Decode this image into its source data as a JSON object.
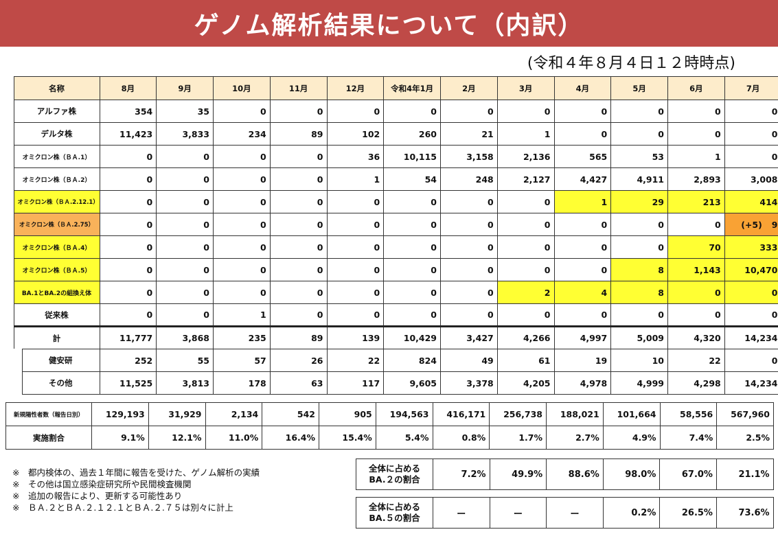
{
  "title": "ゲノム解析結果について（内訳）",
  "as_of": "(令和４年８月４日１２時時点)",
  "header": [
    "名称",
    "8月",
    "9月",
    "10月",
    "11月",
    "12月",
    "令和4年1月",
    "2月",
    "3月",
    "4月",
    "5月",
    "6月",
    "7月"
  ],
  "rows": [
    {
      "label": "アルファ株",
      "values": [
        "354",
        "35",
        "0",
        "0",
        "0",
        "0",
        "0",
        "0",
        "0",
        "0",
        "0",
        "0"
      ]
    },
    {
      "label": "デルタ株",
      "values": [
        "11,423",
        "3,833",
        "234",
        "89",
        "102",
        "260",
        "21",
        "1",
        "0",
        "0",
        "0",
        "0"
      ]
    },
    {
      "label": "オミクロン株（ＢＡ.1）",
      "values": [
        "0",
        "0",
        "0",
        "0",
        "36",
        "10,115",
        "3,158",
        "2,136",
        "565",
        "53",
        "1",
        "0"
      ]
    },
    {
      "label": "オミクロン株（ＢＡ.2）",
      "values": [
        "0",
        "0",
        "0",
        "0",
        "1",
        "54",
        "248",
        "2,127",
        "4,427",
        "4,911",
        "2,893",
        "3,008"
      ]
    },
    {
      "label": "オミクロン株（ＢＡ.2.12.1）",
      "values": [
        "0",
        "0",
        "0",
        "0",
        "0",
        "0",
        "0",
        "0",
        "1",
        "29",
        "213",
        "414"
      ]
    },
    {
      "label": "オミクロン株（ＢＡ.2.75）",
      "values": [
        "0",
        "0",
        "0",
        "0",
        "0",
        "0",
        "0",
        "0",
        "0",
        "0",
        "0",
        "9"
      ],
      "note_plus": "(+5)"
    },
    {
      "label": "オミクロン株（ＢＡ.4）",
      "values": [
        "0",
        "0",
        "0",
        "0",
        "0",
        "0",
        "0",
        "0",
        "0",
        "0",
        "70",
        "333"
      ]
    },
    {
      "label": "オミクロン株（ＢＡ.5）",
      "values": [
        "0",
        "0",
        "0",
        "0",
        "0",
        "0",
        "0",
        "0",
        "0",
        "8",
        "1,143",
        "10,470"
      ]
    },
    {
      "label": "BA.1とBA.2の組換え体",
      "values": [
        "0",
        "0",
        "0",
        "0",
        "0",
        "0",
        "0",
        "2",
        "4",
        "8",
        "0",
        "0"
      ]
    },
    {
      "label": "従来株",
      "values": [
        "0",
        "0",
        "1",
        "0",
        "0",
        "0",
        "0",
        "0",
        "0",
        "0",
        "0",
        "0"
      ]
    }
  ],
  "total": {
    "label": "計",
    "values": [
      "11,777",
      "3,868",
      "235",
      "89",
      "139",
      "10,429",
      "3,427",
      "4,266",
      "4,997",
      "5,009",
      "4,320",
      "14,234"
    ]
  },
  "kenanken": {
    "label": "健安研",
    "values": [
      "252",
      "55",
      "57",
      "26",
      "22",
      "824",
      "49",
      "61",
      "19",
      "10",
      "22",
      "0"
    ]
  },
  "other": {
    "label": "その他",
    "values": [
      "11,525",
      "3,813",
      "178",
      "63",
      "117",
      "9,605",
      "3,378",
      "4,205",
      "4,978",
      "4,999",
      "4,298",
      "14,234"
    ]
  },
  "new_cases": {
    "label": "新規陽性者数（報告日別）",
    "values": [
      "129,193",
      "31,929",
      "2,134",
      "542",
      "905",
      "194,563",
      "416,171",
      "256,738",
      "188,021",
      "101,664",
      "58,556",
      "567,960"
    ]
  },
  "rate": {
    "label": "実施割合",
    "values": [
      "9.1%",
      "12.1%",
      "11.0%",
      "16.4%",
      "15.4%",
      "5.4%",
      "0.8%",
      "1.7%",
      "2.7%",
      "4.9%",
      "7.4%",
      "2.5%"
    ]
  },
  "notes": [
    "※　都内検体の、過去１年間に報告を受けた、ゲノム解析の実績",
    "※　その他は国立感染症研究所や民間検査機関",
    "※　追加の報告により、更新する可能性あり",
    "※　ＢＡ.２とＢＡ.２.１２.１とＢＡ.２.７５は別々に計上"
  ],
  "ba2_share": {
    "label": "全体に占める BA.２の割合",
    "values": [
      "7.2%",
      "49.9%",
      "88.6%",
      "98.0%",
      "67.0%",
      "21.1%"
    ]
  },
  "ba5_share": {
    "label": "全体に占める BA.５の割合",
    "values": [
      "ー",
      "ー",
      "ー",
      "0.2%",
      "26.5%",
      "73.6%"
    ]
  },
  "colors": {
    "banner": "#bf4a47",
    "header_bg": "#fdeccb",
    "highlight_yellow": "#ffff33",
    "highlight_orange": "#f9a234"
  }
}
